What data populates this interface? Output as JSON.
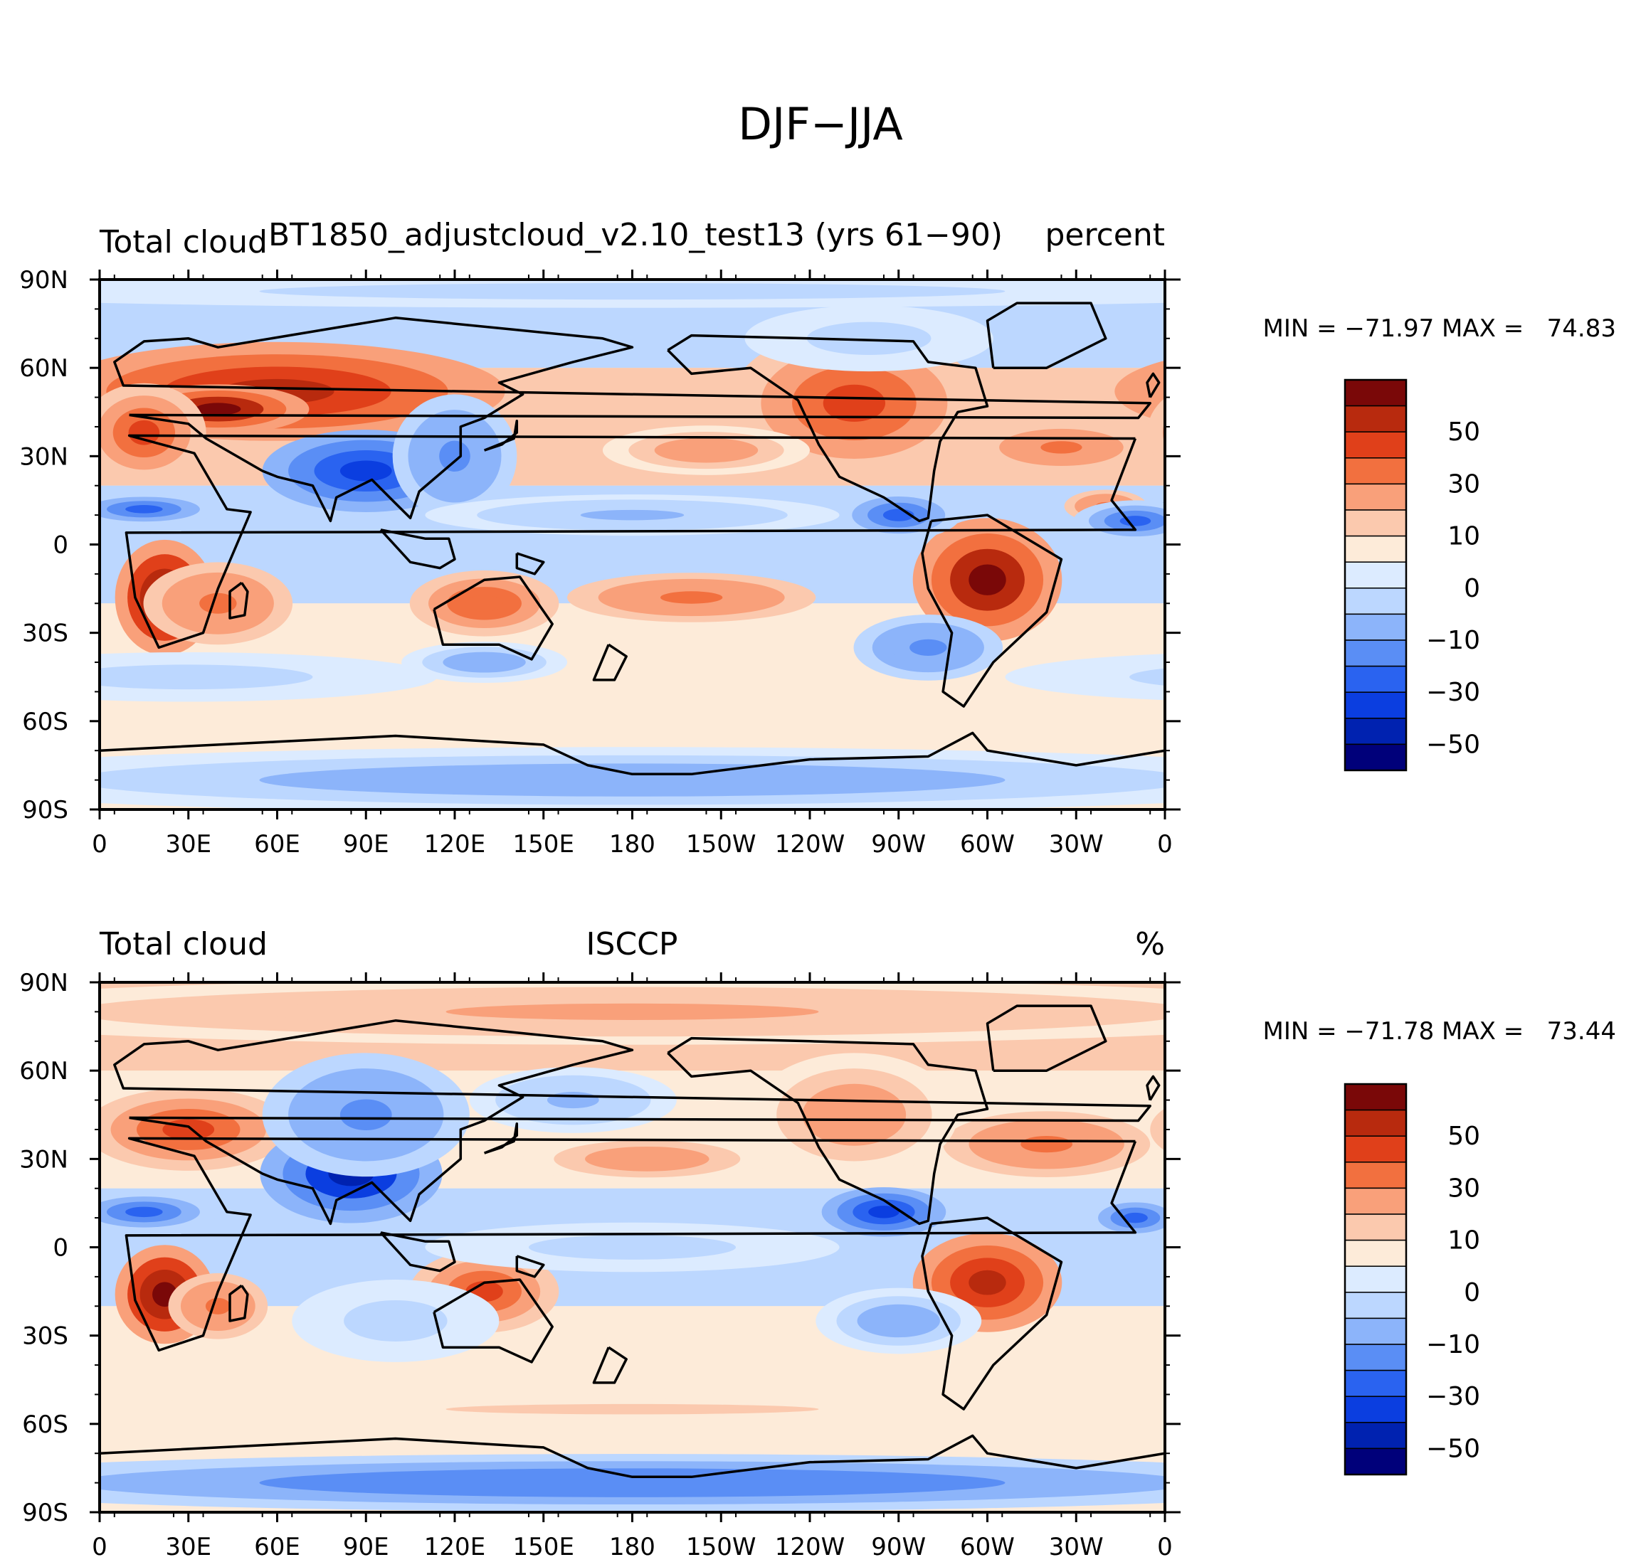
{
  "figure": {
    "title": "DJF−JJA"
  },
  "colors": {
    "palette": [
      "#00007a",
      "#0022b0",
      "#0b3ee0",
      "#2a63f0",
      "#5a8ef5",
      "#8cb4fa",
      "#bcd7ff",
      "#dcebff",
      "#fdebd9",
      "#fbc9ae",
      "#f9a07a",
      "#f2703f",
      "#e0401a",
      "#b82a0e",
      "#7a0808"
    ],
    "coast": "#000000"
  },
  "chart_data": [
    {
      "type": "heatmap",
      "panel": "top",
      "left_title": "Total cloud",
      "center_title": "BT1850_adjustcloud_v2.10_test13 (yrs 61−90)",
      "right_title": "percent",
      "stats": "MIN = −71.97 MAX =   74.83",
      "min": -71.97,
      "max": 74.83,
      "x_ticks": [
        "0",
        "30E",
        "60E",
        "90E",
        "120E",
        "150E",
        "180",
        "150W",
        "120W",
        "90W",
        "60W",
        "30W",
        "0"
      ],
      "y_ticks": [
        "90N",
        "60N",
        "30N",
        "0",
        "30S",
        "60S",
        "90S"
      ],
      "xlim": [
        0,
        360
      ],
      "ylim": [
        -90,
        90
      ],
      "colorbar_levels": [
        -70,
        -60,
        -50,
        -40,
        -30,
        -20,
        -10,
        -5,
        0,
        5,
        10,
        20,
        30,
        40,
        50,
        60,
        70
      ],
      "colorbar_labels": [
        "50",
        "30",
        "10",
        "0",
        "−10",
        "−30",
        "−50"
      ],
      "features": [
        {
          "lon": 60,
          "lat": 52,
          "rx": 55,
          "ry": 12,
          "v": 40
        },
        {
          "lon": 40,
          "lat": 46,
          "rx": 22,
          "ry": 6,
          "v": 55
        },
        {
          "lon": 15,
          "lat": 38,
          "rx": 15,
          "ry": 12,
          "v": 30
        },
        {
          "lon": 22,
          "lat": -18,
          "rx": 12,
          "ry": 14,
          "v": 60
        },
        {
          "lon": 40,
          "lat": -20,
          "rx": 18,
          "ry": 10,
          "v": 20
        },
        {
          "lon": 130,
          "lat": -20,
          "rx": 18,
          "ry": 8,
          "v": 28
        },
        {
          "lon": 200,
          "lat": -18,
          "rx": 30,
          "ry": 6,
          "v": 25
        },
        {
          "lon": 300,
          "lat": -12,
          "rx": 18,
          "ry": 15,
          "v": 55
        },
        {
          "lon": 255,
          "lat": 48,
          "rx": 30,
          "ry": 18,
          "v": 30
        },
        {
          "lon": 205,
          "lat": 32,
          "rx": 25,
          "ry": 6,
          "v": 18
        },
        {
          "lon": 325,
          "lat": 33,
          "rx": 20,
          "ry": 6,
          "v": 20
        },
        {
          "lon": 340,
          "lat": 13,
          "rx": 10,
          "ry": 4,
          "v": 25
        },
        {
          "lon": 90,
          "lat": 25,
          "rx": 25,
          "ry": 10,
          "v": -45
        },
        {
          "lon": 120,
          "lat": 30,
          "rx": 15,
          "ry": 15,
          "v": -25
        },
        {
          "lon": 15,
          "lat": 12,
          "rx": 18,
          "ry": 4,
          "v": -35
        },
        {
          "lon": 270,
          "lat": 10,
          "rx": 15,
          "ry": 6,
          "v": -40
        },
        {
          "lon": 350,
          "lat": 8,
          "rx": 15,
          "ry": 5,
          "v": -40
        },
        {
          "lon": 180,
          "lat": 10,
          "rx": 50,
          "ry": 5,
          "v": -12
        },
        {
          "lon": 280,
          "lat": -35,
          "rx": 18,
          "ry": 8,
          "v": -25
        },
        {
          "lon": 130,
          "lat": -40,
          "rx": 20,
          "ry": 5,
          "v": -20
        },
        {
          "lon": 30,
          "lat": -45,
          "rx": 60,
          "ry": 6,
          "v": -10
        },
        {
          "lon": 260,
          "lat": 70,
          "rx": 30,
          "ry": 8,
          "v": -10
        },
        {
          "lon": 180,
          "lat": -80,
          "rx": 180,
          "ry": 8,
          "v": -18
        },
        {
          "lon": 180,
          "lat": 86,
          "rx": 180,
          "ry": 4,
          "v": -8
        }
      ]
    },
    {
      "type": "heatmap",
      "panel": "bottom",
      "left_title": "Total cloud",
      "center_title": "ISCCP",
      "right_title": "%",
      "stats": "MIN = −71.78 MAX =   73.44",
      "min": -71.78,
      "max": 73.44,
      "x_ticks": [
        "0",
        "30E",
        "60E",
        "90E",
        "120E",
        "150E",
        "180",
        "150W",
        "120W",
        "90W",
        "60W",
        "30W",
        "0"
      ],
      "y_ticks": [
        "90N",
        "60N",
        "30N",
        "0",
        "30S",
        "60S",
        "90S"
      ],
      "xlim": [
        0,
        360
      ],
      "ylim": [
        -90,
        90
      ],
      "colorbar_levels": [
        -70,
        -60,
        -50,
        -40,
        -30,
        -20,
        -10,
        -5,
        0,
        5,
        10,
        20,
        30,
        40,
        50,
        60,
        70
      ],
      "colorbar_labels": [
        "50",
        "30",
        "10",
        "0",
        "−10",
        "−30",
        "−50"
      ],
      "features": [
        {
          "lon": 180,
          "lat": 80,
          "rx": 180,
          "ry": 8,
          "v": 12
        },
        {
          "lon": 30,
          "lat": 40,
          "rx": 25,
          "ry": 10,
          "v": 30
        },
        {
          "lon": 22,
          "lat": -16,
          "rx": 12,
          "ry": 12,
          "v": 60
        },
        {
          "lon": 40,
          "lat": -20,
          "rx": 12,
          "ry": 8,
          "v": 20
        },
        {
          "lon": 130,
          "lat": -15,
          "rx": 18,
          "ry": 10,
          "v": 35
        },
        {
          "lon": 300,
          "lat": -12,
          "rx": 18,
          "ry": 12,
          "v": 45
        },
        {
          "lon": 185,
          "lat": 30,
          "rx": 30,
          "ry": 6,
          "v": 15
        },
        {
          "lon": 320,
          "lat": 35,
          "rx": 25,
          "ry": 8,
          "v": 25
        },
        {
          "lon": 255,
          "lat": 45,
          "rx": 25,
          "ry": 15,
          "v": 18
        },
        {
          "lon": 85,
          "lat": 25,
          "rx": 22,
          "ry": 12,
          "v": -55
        },
        {
          "lon": 90,
          "lat": 45,
          "rx": 25,
          "ry": 15,
          "v": -25
        },
        {
          "lon": 15,
          "lat": 12,
          "rx": 18,
          "ry": 5,
          "v": -40
        },
        {
          "lon": 265,
          "lat": 12,
          "rx": 15,
          "ry": 6,
          "v": -45
        },
        {
          "lon": 350,
          "lat": 10,
          "rx": 12,
          "ry": 5,
          "v": -35
        },
        {
          "lon": 180,
          "lat": 0,
          "rx": 50,
          "ry": 6,
          "v": -8
        },
        {
          "lon": 270,
          "lat": -25,
          "rx": 20,
          "ry": 8,
          "v": -20
        },
        {
          "lon": 100,
          "lat": -25,
          "rx": 25,
          "ry": 10,
          "v": -10
        },
        {
          "lon": 180,
          "lat": -80,
          "rx": 180,
          "ry": 7,
          "v": -30
        },
        {
          "lon": 160,
          "lat": 50,
          "rx": 25,
          "ry": 8,
          "v": -12
        },
        {
          "lon": 180,
          "lat": -55,
          "rx": 180,
          "ry": 5,
          "v": 5
        }
      ]
    }
  ]
}
